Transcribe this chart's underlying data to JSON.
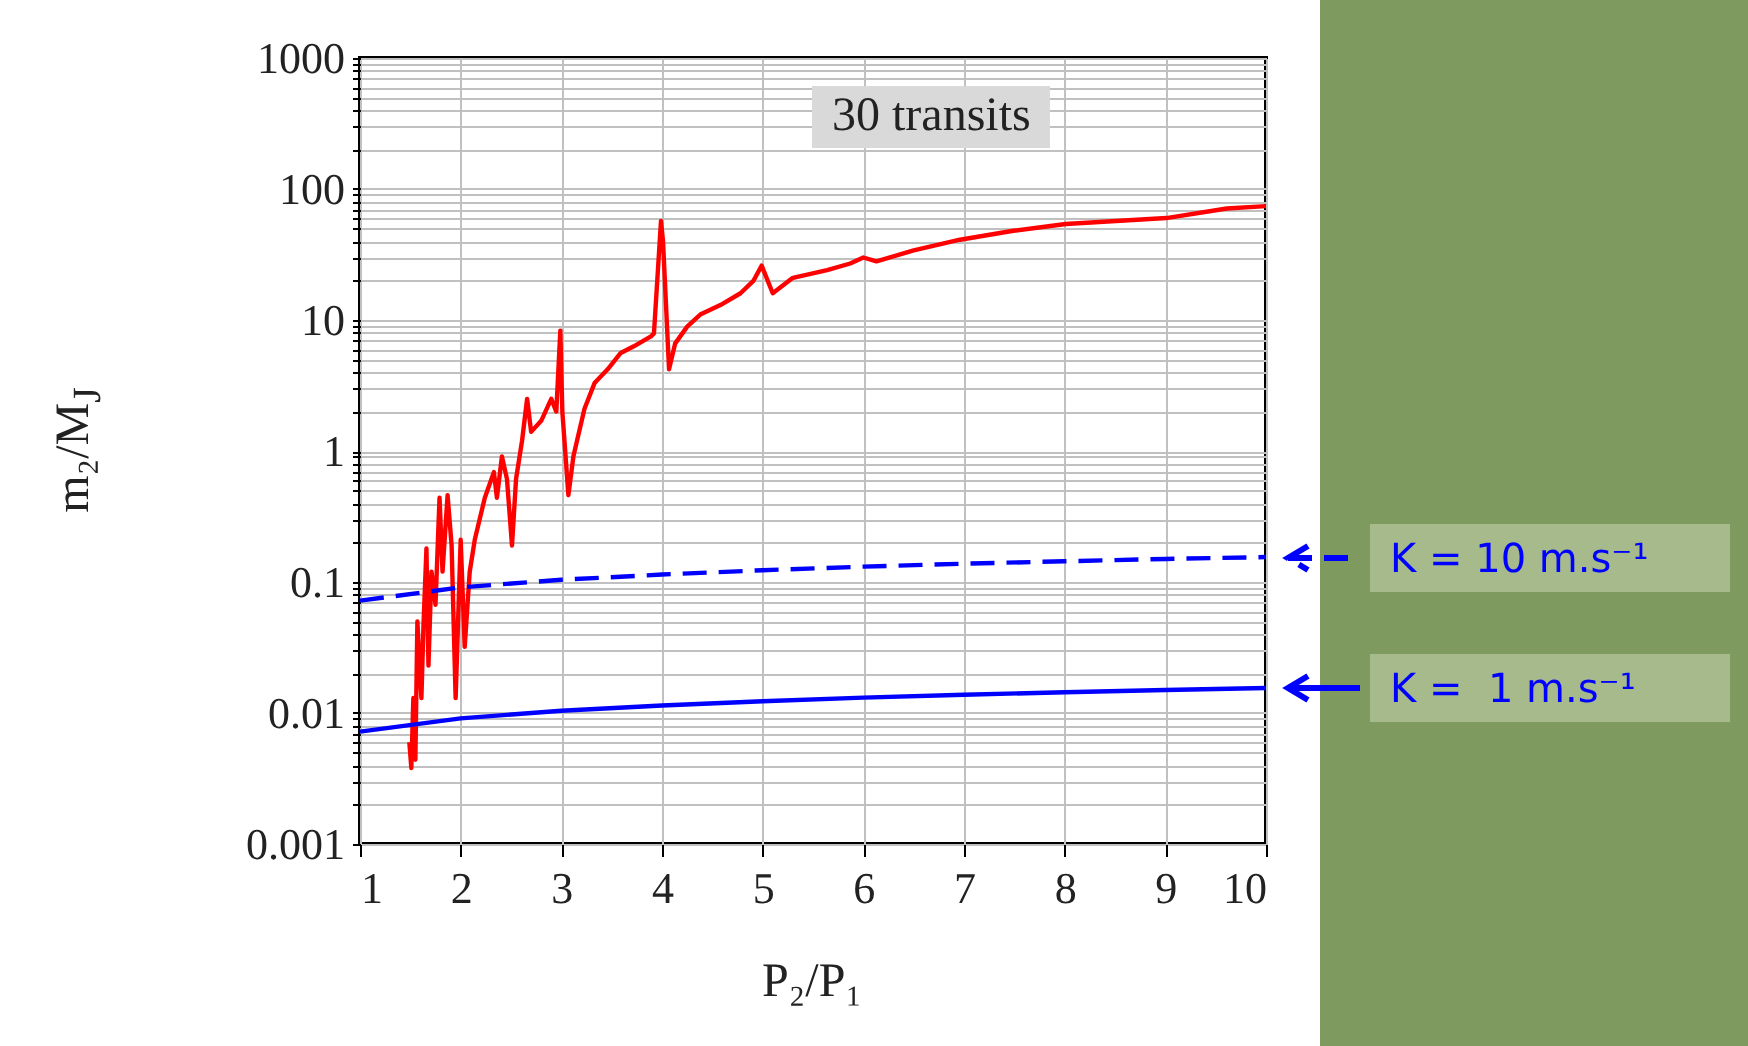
{
  "chart_data": {
    "type": "line",
    "xlabel": "P₂/P₁",
    "ylabel": "m₂/M$_{J}$",
    "log": "y",
    "xlim": [
      1,
      10
    ],
    "xticks": [
      1,
      2,
      3,
      4,
      5,
      6,
      7,
      8,
      9,
      10
    ],
    "ylim": [
      0.001,
      1000
    ],
    "yticks": [
      0.001,
      {
        "value": 0.002,
        "label": null
      },
      {
        "value": 0.003,
        "label": null
      },
      {
        "value": 0.004,
        "label": null
      },
      {
        "value": 0.005,
        "label": null
      },
      {
        "value": 0.006,
        "label": null
      },
      {
        "value": 0.007,
        "label": null
      },
      {
        "value": 0.008,
        "label": null
      },
      {
        "value": 0.009,
        "label": null
      },
      0.01,
      {
        "value": 0.02,
        "label": null
      },
      {
        "value": 0.03,
        "label": null
      },
      {
        "value": 0.04,
        "label": null
      },
      {
        "value": 0.05,
        "label": null
      },
      {
        "value": 0.06,
        "label": null
      },
      {
        "value": 0.07,
        "label": null
      },
      {
        "value": 0.08,
        "label": null
      },
      {
        "value": 0.09,
        "label": null
      },
      0.1,
      {
        "value": 0.2,
        "label": null
      },
      {
        "value": 0.3,
        "label": null
      },
      {
        "value": 0.4,
        "label": null
      },
      {
        "value": 0.5,
        "label": null
      },
      {
        "value": 0.6,
        "label": null
      },
      {
        "value": 0.7,
        "label": null
      },
      {
        "value": 0.8,
        "label": null
      },
      {
        "value": 0.9,
        "label": null
      },
      1,
      {
        "value": 2,
        "label": null
      },
      {
        "value": 3,
        "label": null
      },
      {
        "value": 4,
        "label": null
      },
      {
        "value": 5,
        "label": null
      },
      {
        "value": 6,
        "label": null
      },
      {
        "value": 7,
        "label": null
      },
      {
        "value": 8,
        "label": null
      },
      {
        "value": 9,
        "label": null
      },
      10,
      {
        "value": 20,
        "label": null
      },
      {
        "value": 30,
        "label": null
      },
      {
        "value": 40,
        "label": null
      },
      {
        "value": 50,
        "label": null
      },
      {
        "value": 60,
        "label": null
      },
      {
        "value": 70,
        "label": null
      },
      {
        "value": 80,
        "label": null
      },
      {
        "value": 90,
        "label": null
      },
      100,
      {
        "value": 200,
        "label": null
      },
      {
        "value": 300,
        "label": null
      },
      {
        "value": 400,
        "label": null
      },
      {
        "value": 500,
        "label": null
      },
      {
        "value": 600,
        "label": null
      },
      {
        "value": 700,
        "label": null
      },
      {
        "value": 800,
        "label": null
      },
      {
        "value": 900,
        "label": null
      },
      1000
    ],
    "grid": true,
    "legend": "right",
    "annotations": [
      "30 transits"
    ],
    "series": [
      {
        "color": "#ff0000",
        "x": [
          1.49,
          1.51,
          1.53,
          1.55,
          1.57,
          1.61,
          1.63,
          1.66,
          1.68,
          1.71,
          1.75,
          1.79,
          1.82,
          1.87,
          1.91,
          1.95,
          2.0,
          2.04,
          2.09,
          2.14,
          2.24,
          2.33,
          2.36,
          2.41,
          2.46,
          2.51,
          2.55,
          2.61,
          2.66,
          2.7,
          2.8,
          2.9,
          2.95,
          2.99,
          3.01,
          3.07,
          3.12,
          3.23,
          3.33,
          3.46,
          3.59,
          3.72,
          3.89,
          3.92,
          3.99,
          4.01,
          4.07,
          4.13,
          4.25,
          4.38,
          4.58,
          4.78,
          4.91,
          4.99,
          5.1,
          5.3,
          5.64,
          5.87,
          6.0,
          6.13,
          6.5,
          6.96,
          7.49,
          8.01,
          9.01,
          9.61,
          10.0
        ],
        "values": [
          0.006,
          0.0038,
          0.013,
          0.0044,
          0.05,
          0.013,
          0.045,
          0.18,
          0.023,
          0.12,
          0.067,
          0.44,
          0.12,
          0.46,
          0.19,
          0.013,
          0.21,
          0.032,
          0.12,
          0.21,
          0.44,
          0.69,
          0.44,
          0.91,
          0.61,
          0.19,
          0.61,
          1.2,
          2.5,
          1.4,
          1.7,
          2.5,
          2.0,
          8.3,
          2.0,
          0.46,
          0.91,
          2.1,
          3.3,
          4.2,
          5.6,
          6.3,
          7.5,
          7.9,
          57,
          40,
          4.2,
          6.6,
          8.9,
          11,
          13,
          16,
          20,
          26,
          16,
          21,
          24,
          27,
          30,
          28,
          34,
          41,
          48,
          54,
          60,
          71,
          74
        ]
      },
      {
        "name": "K = 10 m.s⁻¹",
        "color": "#0000ff",
        "line_style": "dashed",
        "x": [
          1,
          2,
          3,
          4,
          5,
          6,
          7,
          8,
          9,
          10
        ],
        "values": [
          0.072,
          0.091,
          0.104,
          0.114,
          0.123,
          0.131,
          0.138,
          0.144,
          0.15,
          0.155
        ]
      },
      {
        "name": "K =  1 m.s⁻¹",
        "color": "#0000ff",
        "line_style": "solid",
        "x": [
          1,
          2,
          3,
          4,
          5,
          6,
          7,
          8,
          9,
          10
        ],
        "values": [
          0.0072,
          0.0091,
          0.0104,
          0.0114,
          0.0123,
          0.0131,
          0.0138,
          0.0144,
          0.015,
          0.0155
        ]
      }
    ]
  }
}
